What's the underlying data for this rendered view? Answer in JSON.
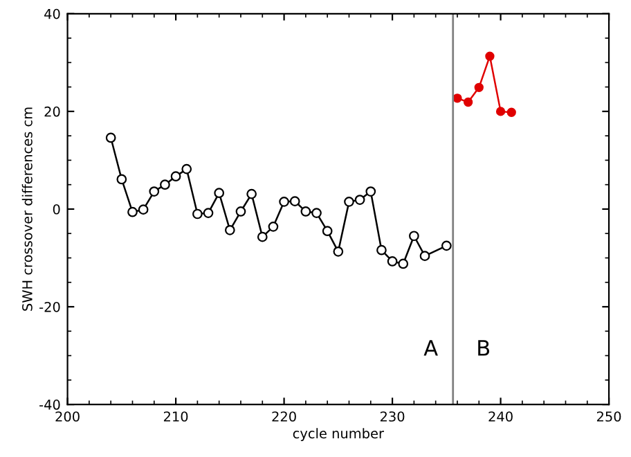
{
  "chart_data": {
    "type": "line",
    "xlabel": "cycle number",
    "ylabel": "SWH crossover differences cm",
    "xlim": [
      200,
      250
    ],
    "xticks": [
      200,
      210,
      220,
      230,
      240,
      250
    ],
    "ylim": [
      -40,
      40
    ],
    "yticks": [
      -40,
      -20,
      0,
      20,
      40
    ],
    "grid": false,
    "legend": false,
    "marker": "circle",
    "line_style": "solid",
    "series": [
      {
        "color": "#000000",
        "x": [
          204,
          205,
          206,
          207,
          208,
          209,
          210,
          211,
          212,
          213,
          214,
          215,
          216,
          217,
          218,
          219,
          220,
          221,
          222,
          223,
          224,
          225,
          226,
          227,
          228,
          229,
          230,
          231,
          232,
          233,
          235
        ],
        "values": [
          14.6,
          6.1,
          -0.6,
          -0.1,
          3.6,
          5,
          6.7,
          8.2,
          -1,
          -0.8,
          3.3,
          -4.3,
          -0.5,
          3.1,
          -5.7,
          -3.6,
          1.5,
          1.6,
          -0.5,
          -0.8,
          -4.5,
          -8.7,
          1.5,
          1.9,
          3.6,
          -8.4,
          -10.7,
          -11.2,
          -5.5,
          -9.6,
          -7.5
        ]
      },
      {
        "color": "#e00000",
        "x": [
          236,
          237,
          238,
          239,
          240,
          241
        ],
        "values": [
          22.7,
          21.9,
          24.9,
          31.3,
          20,
          19.8
        ]
      }
    ],
    "ref_lines": [
      {
        "axis": "x",
        "value": 235.6,
        "color": "#808080"
      }
    ],
    "annotations": [
      "A",
      "B"
    ]
  }
}
